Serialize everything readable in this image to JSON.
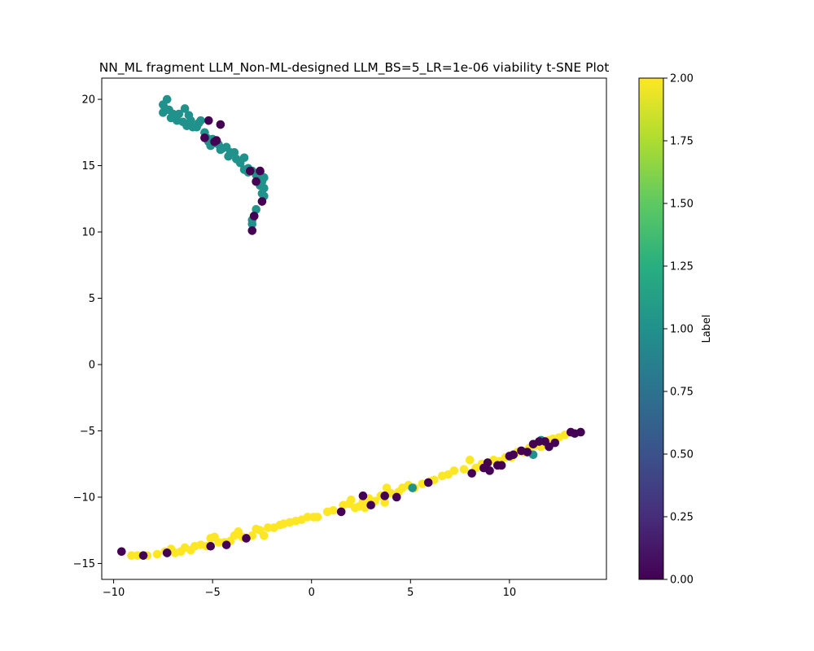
{
  "chart_data": {
    "type": "scatter",
    "title": "NN_ML fragment LLM_Non-ML-designed LLM_BS=5_LR=1e-06 viability t-SNE Plot",
    "xlabel": "",
    "ylabel": "",
    "xlim": [
      -10.6,
      14.9
    ],
    "ylim": [
      -16.2,
      21.6
    ],
    "x_ticks": [
      -10,
      -5,
      0,
      5,
      10
    ],
    "y_ticks": [
      -15,
      -10,
      -5,
      0,
      5,
      10,
      15,
      20
    ],
    "grid": false,
    "colorbar": {
      "label": "Label",
      "range": [
        0.0,
        2.0
      ],
      "ticks": [
        "0.00",
        "0.25",
        "0.50",
        "0.75",
        "1.00",
        "1.25",
        "1.50",
        "1.75",
        "2.00"
      ],
      "colormap": "viridis",
      "colors": [
        "#440154",
        "#472d7b",
        "#3b528b",
        "#2c728e",
        "#21918c",
        "#28ae80",
        "#5ec962",
        "#addc30",
        "#fde725"
      ]
    },
    "series": [
      {
        "label_value": 2,
        "color": "#fde725",
        "points": [
          [
            -9.1,
            -14.4
          ],
          [
            -8.8,
            -14.4
          ],
          [
            -8.3,
            -14.4
          ],
          [
            -7.8,
            -14.3
          ],
          [
            -7.4,
            -14.1
          ],
          [
            -7.1,
            -13.9
          ],
          [
            -6.9,
            -14.2
          ],
          [
            -6.6,
            -14.1
          ],
          [
            -6.4,
            -13.8
          ],
          [
            -6.1,
            -14.0
          ],
          [
            -5.9,
            -13.7
          ],
          [
            -5.6,
            -13.6
          ],
          [
            -5.3,
            -13.7
          ],
          [
            -5.1,
            -13.1
          ],
          [
            -4.9,
            -13.0
          ],
          [
            -4.7,
            -13.4
          ],
          [
            -4.4,
            -13.4
          ],
          [
            -4.1,
            -13.3
          ],
          [
            -3.9,
            -12.9
          ],
          [
            -3.7,
            -12.6
          ],
          [
            -3.5,
            -13.0
          ],
          [
            -3.3,
            -13.1
          ],
          [
            -3.0,
            -12.9
          ],
          [
            -2.8,
            -12.4
          ],
          [
            -2.6,
            -12.5
          ],
          [
            -2.4,
            -12.9
          ],
          [
            -2.2,
            -12.3
          ],
          [
            -1.9,
            -12.3
          ],
          [
            -1.6,
            -12.1
          ],
          [
            -1.4,
            -12.0
          ],
          [
            -1.1,
            -11.9
          ],
          [
            -0.8,
            -11.8
          ],
          [
            -0.5,
            -11.7
          ],
          [
            -0.2,
            -11.5
          ],
          [
            0.1,
            -11.5
          ],
          [
            0.8,
            -11.1
          ],
          [
            1.1,
            -11.0
          ],
          [
            1.6,
            -10.6
          ],
          [
            1.9,
            -10.5
          ],
          [
            2.0,
            -10.2
          ],
          [
            2.2,
            -10.8
          ],
          [
            2.4,
            -10.7
          ],
          [
            2.6,
            -10.3
          ],
          [
            2.9,
            -10.1
          ],
          [
            3.2,
            -10.3
          ],
          [
            3.5,
            -9.9
          ],
          [
            3.7,
            -10.4
          ],
          [
            3.8,
            -9.3
          ],
          [
            4.0,
            -9.7
          ],
          [
            4.4,
            -9.6
          ],
          [
            4.6,
            -9.3
          ],
          [
            4.9,
            -9.1
          ],
          [
            5.2,
            -9.3
          ],
          [
            5.6,
            -9.0
          ],
          [
            6.0,
            -8.8
          ],
          [
            6.2,
            -8.7
          ],
          [
            6.6,
            -8.4
          ],
          [
            6.9,
            -8.3
          ],
          [
            7.2,
            -8.0
          ],
          [
            7.7,
            -7.9
          ],
          [
            8.0,
            -7.2
          ],
          [
            8.3,
            -7.8
          ],
          [
            8.6,
            -7.5
          ],
          [
            8.9,
            -7.5
          ],
          [
            9.2,
            -7.2
          ],
          [
            9.5,
            -7.3
          ],
          [
            9.8,
            -7.0
          ],
          [
            10.1,
            -7.0
          ],
          [
            10.4,
            -6.6
          ],
          [
            10.7,
            -6.6
          ],
          [
            11.0,
            -6.3
          ],
          [
            11.3,
            -6.1
          ],
          [
            11.6,
            -6.2
          ],
          [
            11.8,
            -5.8
          ],
          [
            12.0,
            -5.7
          ],
          [
            12.2,
            -5.6
          ],
          [
            12.5,
            -5.5
          ],
          [
            12.8,
            -5.3
          ],
          [
            0.3,
            -11.5
          ],
          [
            2.7,
            -10.8
          ]
        ]
      },
      {
        "label_value": 1,
        "color": "#21918c",
        "points": [
          [
            -7.3,
            20.0
          ],
          [
            -7.5,
            19.6
          ],
          [
            -7.4,
            19.3
          ],
          [
            -7.2,
            19.2
          ],
          [
            -7.5,
            19.0
          ],
          [
            -7.0,
            18.9
          ],
          [
            -6.7,
            18.9
          ],
          [
            -7.1,
            18.6
          ],
          [
            -6.8,
            18.4
          ],
          [
            -6.5,
            18.3
          ],
          [
            -6.4,
            19.3
          ],
          [
            -6.2,
            18.8
          ],
          [
            -6.1,
            18.4
          ],
          [
            -6.3,
            18.0
          ],
          [
            -6.0,
            17.9
          ],
          [
            -5.8,
            17.9
          ],
          [
            -5.7,
            18.2
          ],
          [
            -5.6,
            18.4
          ],
          [
            -5.4,
            17.5
          ],
          [
            -5.3,
            17.1
          ],
          [
            -5.2,
            16.8
          ],
          [
            -5.0,
            17.0
          ],
          [
            -4.9,
            16.7
          ],
          [
            -4.7,
            16.6
          ],
          [
            -4.5,
            16.3
          ],
          [
            -4.3,
            16.4
          ],
          [
            -4.1,
            16.0
          ],
          [
            -3.9,
            16.0
          ],
          [
            -4.2,
            15.7
          ],
          [
            -3.8,
            15.5
          ],
          [
            -3.6,
            15.2
          ],
          [
            -3.4,
            15.6
          ],
          [
            -3.4,
            14.7
          ],
          [
            -3.2,
            14.8
          ],
          [
            -3.0,
            14.6
          ],
          [
            -2.8,
            14.3
          ],
          [
            -2.6,
            14.5
          ],
          [
            -2.4,
            14.1
          ],
          [
            -2.5,
            13.8
          ],
          [
            -2.6,
            13.5
          ],
          [
            -2.4,
            13.3
          ],
          [
            -2.5,
            12.9
          ],
          [
            -2.4,
            12.7
          ],
          [
            -2.8,
            11.7
          ],
          [
            -2.9,
            11.2
          ],
          [
            -3.0,
            10.9
          ],
          [
            -3.0,
            10.6
          ],
          [
            -7.3,
            -14.2
          ],
          [
            5.1,
            -9.3
          ],
          [
            11.6,
            -5.7
          ],
          [
            11.2,
            -6.8
          ],
          [
            -5.1,
            16.5
          ],
          [
            -4.6,
            16.2
          ],
          [
            -3.2,
            14.5
          ],
          [
            -2.5,
            14.0
          ]
        ]
      },
      {
        "label_value": 0,
        "color": "#440154",
        "points": [
          [
            -5.4,
            17.1
          ],
          [
            -5.2,
            18.4
          ],
          [
            -4.9,
            16.8
          ],
          [
            -4.8,
            16.9
          ],
          [
            -4.6,
            18.1
          ],
          [
            -3.1,
            14.6
          ],
          [
            -2.8,
            13.8
          ],
          [
            -2.6,
            14.6
          ],
          [
            -2.5,
            12.3
          ],
          [
            -2.9,
            11.2
          ],
          [
            -3.0,
            10.1
          ],
          [
            -9.6,
            -14.1
          ],
          [
            -8.5,
            -14.4
          ],
          [
            -7.3,
            -14.2
          ],
          [
            -5.1,
            -13.7
          ],
          [
            -4.3,
            -13.6
          ],
          [
            -3.3,
            -13.1
          ],
          [
            1.5,
            -11.1
          ],
          [
            2.6,
            -9.9
          ],
          [
            3.0,
            -10.6
          ],
          [
            3.7,
            -9.9
          ],
          [
            4.3,
            -10.0
          ],
          [
            5.9,
            -8.9
          ],
          [
            8.1,
            -8.2
          ],
          [
            8.7,
            -7.8
          ],
          [
            8.9,
            -7.4
          ],
          [
            9.0,
            -8.0
          ],
          [
            9.4,
            -7.6
          ],
          [
            9.6,
            -7.6
          ],
          [
            10.0,
            -6.9
          ],
          [
            10.2,
            -6.8
          ],
          [
            10.6,
            -6.5
          ],
          [
            10.9,
            -6.6
          ],
          [
            11.2,
            -6.0
          ],
          [
            11.5,
            -5.8
          ],
          [
            11.8,
            -5.8
          ],
          [
            12.0,
            -6.2
          ],
          [
            12.3,
            -5.9
          ],
          [
            13.1,
            -5.1
          ],
          [
            13.3,
            -5.2
          ],
          [
            13.6,
            -5.1
          ]
        ]
      }
    ]
  }
}
